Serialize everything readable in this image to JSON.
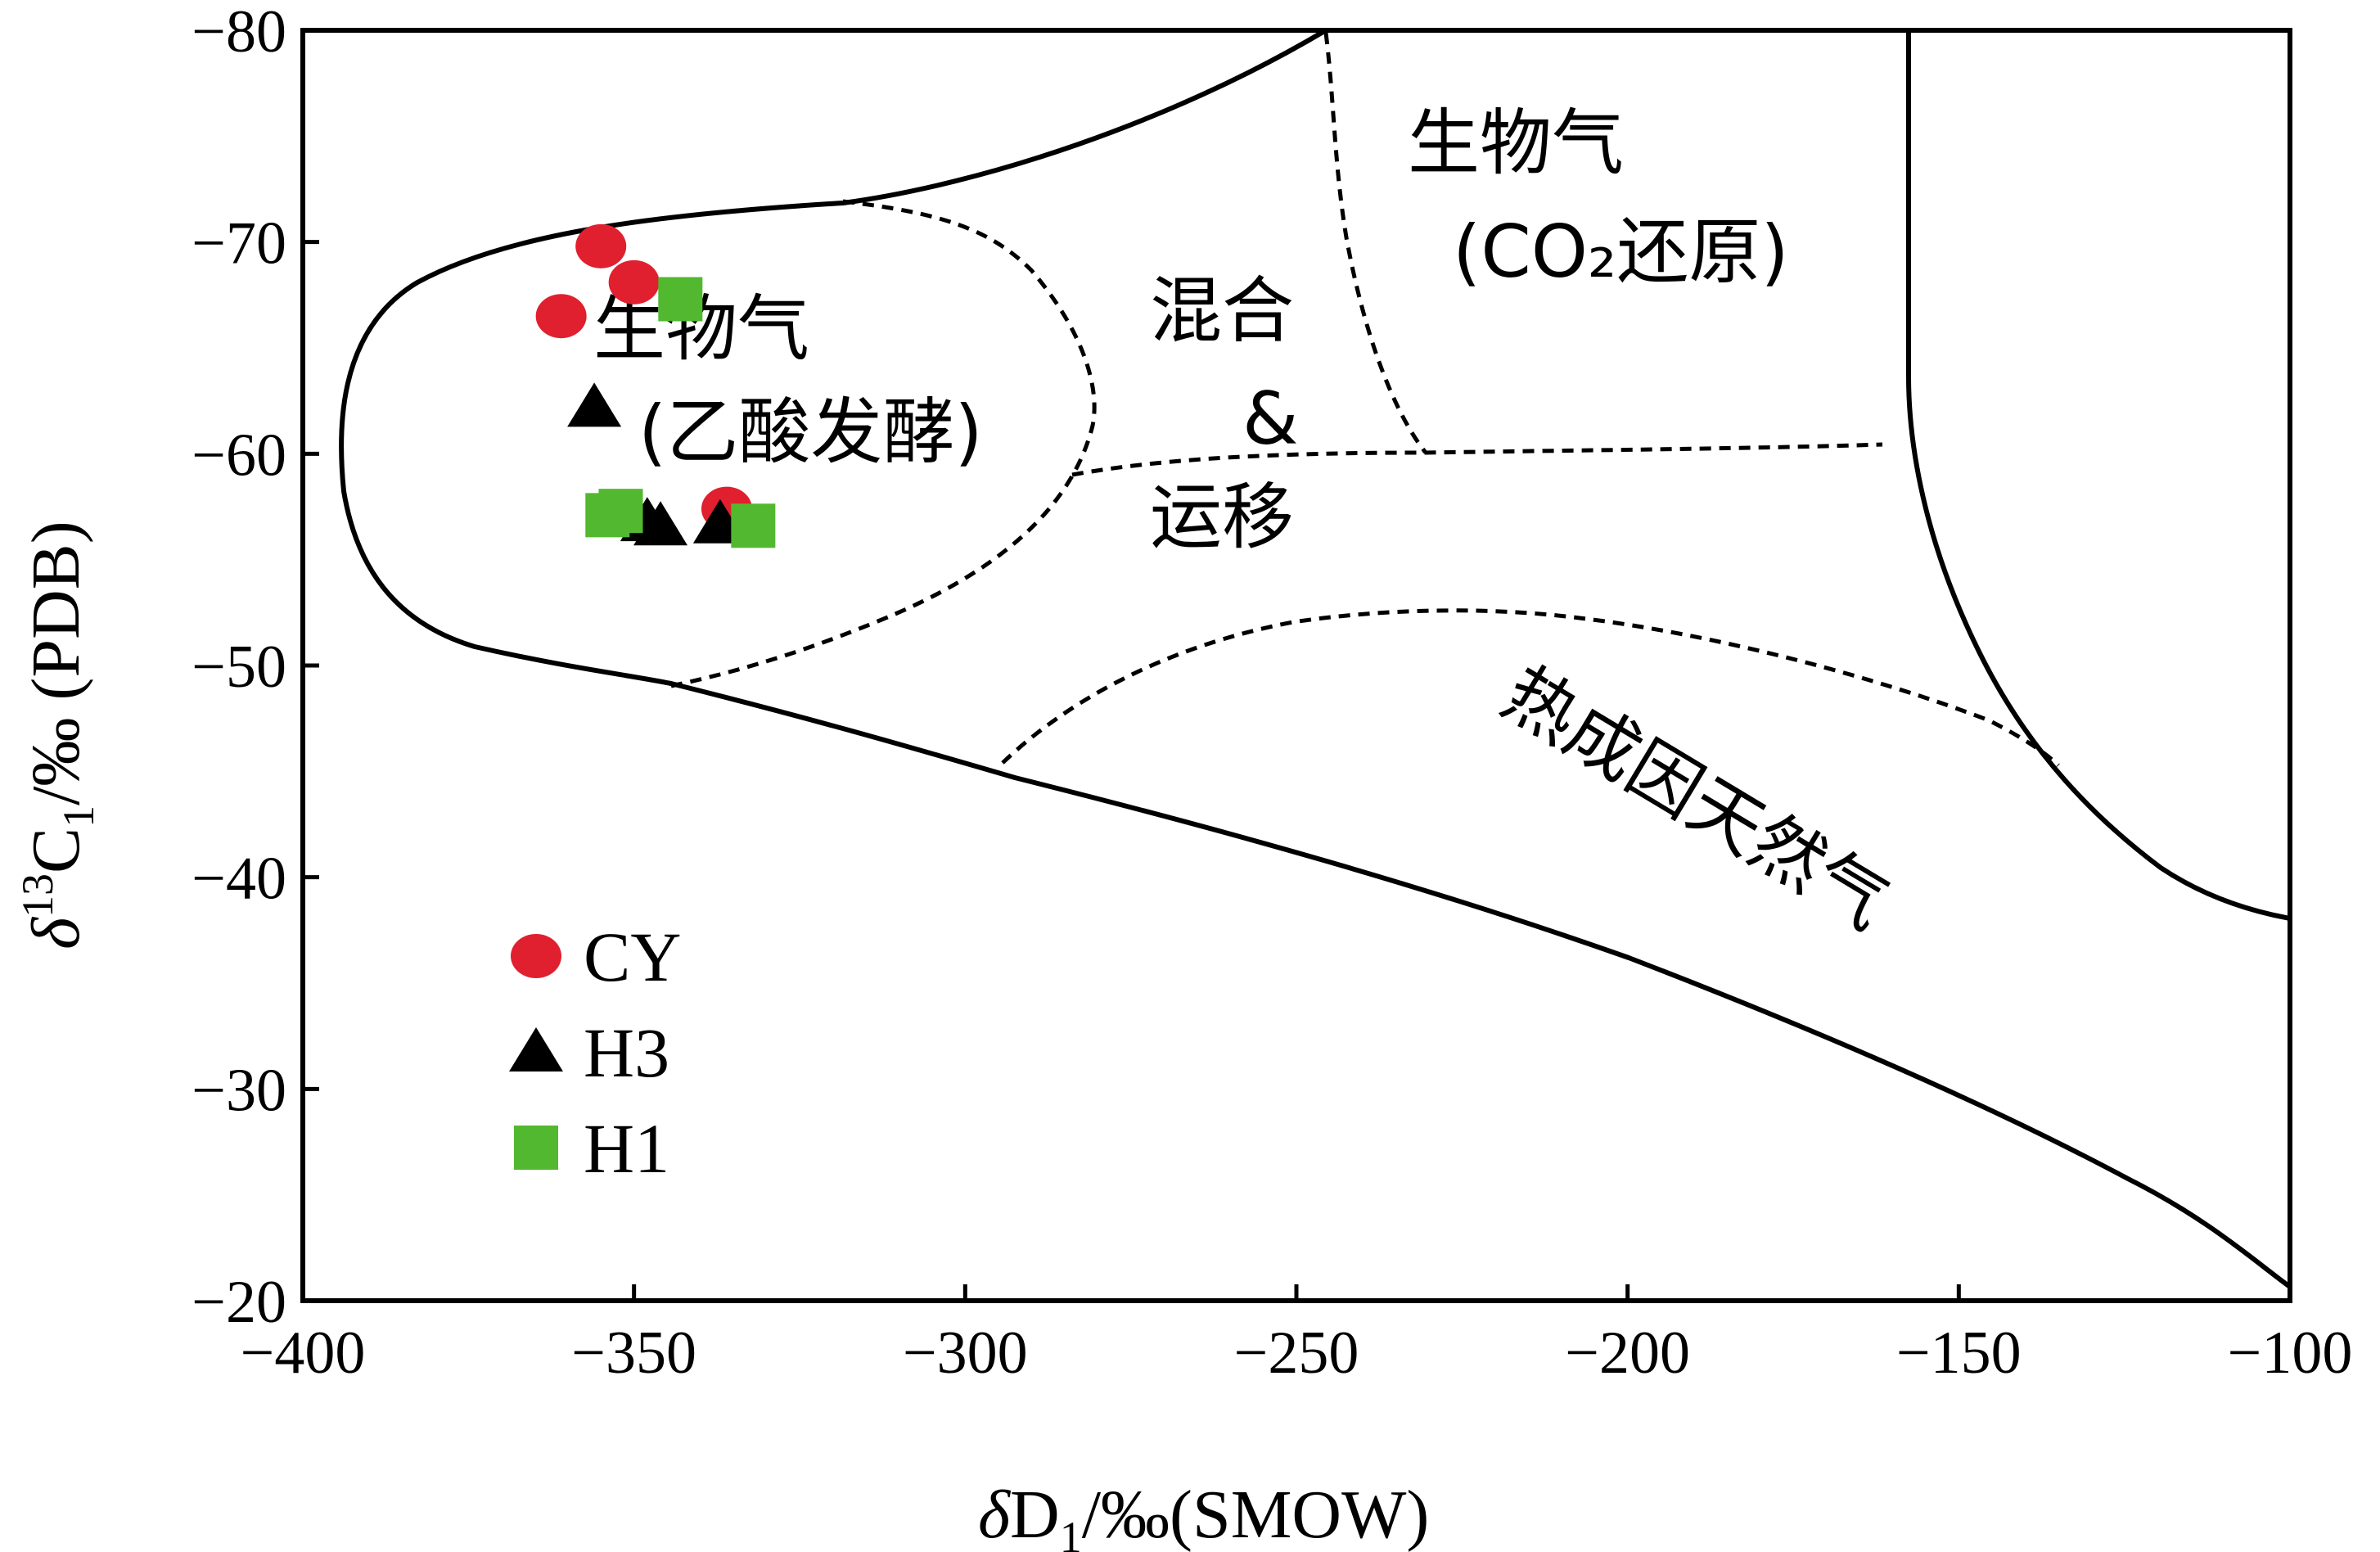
{
  "chart_data": {
    "type": "scatter",
    "xlabel": {
      "italic": "δ",
      "main": "D",
      "sub": "1",
      "rest": "/‰(SMOW)"
    },
    "ylabel": {
      "italic": "δ",
      "sup": "13",
      "main": "C",
      "sub": "1",
      "rest": "/‰ (PDB)"
    },
    "xlim": [
      -400,
      -100
    ],
    "ylim": [
      -20,
      -80
    ],
    "x_ticks": [
      -400,
      -350,
      -300,
      -250,
      -200,
      -150,
      -100
    ],
    "y_ticks": [
      -80,
      -70,
      -60,
      -50,
      -40,
      -30,
      -20
    ],
    "x_tick_labels": [
      "−400",
      "−350",
      "−300",
      "−250",
      "−200",
      "−150",
      "−100"
    ],
    "y_tick_labels": [
      "−80",
      "−70",
      "−60",
      "−50",
      "−40",
      "−30",
      "−20"
    ],
    "grid": false,
    "legend_position": "bottom-left",
    "series": [
      {
        "name": "CY",
        "marker": "circle",
        "color": "#e0202e",
        "points": [
          [
            -355,
            -69.8
          ],
          [
            -350,
            -68.1
          ],
          [
            -361,
            -66.5
          ],
          [
            -336,
            -57.4
          ]
        ]
      },
      {
        "name": "H3",
        "marker": "triangle",
        "color": "#000000",
        "points": [
          [
            -356,
            -62.2
          ],
          [
            -348,
            -56.8
          ],
          [
            -346,
            -56.6
          ],
          [
            -337,
            -56.7
          ]
        ]
      },
      {
        "name": "H1",
        "marker": "square",
        "color": "#52b830",
        "points": [
          [
            -343,
            -67.3
          ],
          [
            -354,
            -57.1
          ],
          [
            -352,
            -57.3
          ],
          [
            -332,
            -56.6
          ]
        ]
      }
    ],
    "regions": [
      {
        "lines": [
          "生物气",
          "(乙酸发酵)"
        ]
      },
      {
        "lines": [
          "混合",
          "&",
          "运移"
        ]
      },
      {
        "lines": [
          "生物气",
          "(CO₂还原)"
        ]
      },
      {
        "lines": [
          "热成因天然气"
        ]
      }
    ]
  }
}
